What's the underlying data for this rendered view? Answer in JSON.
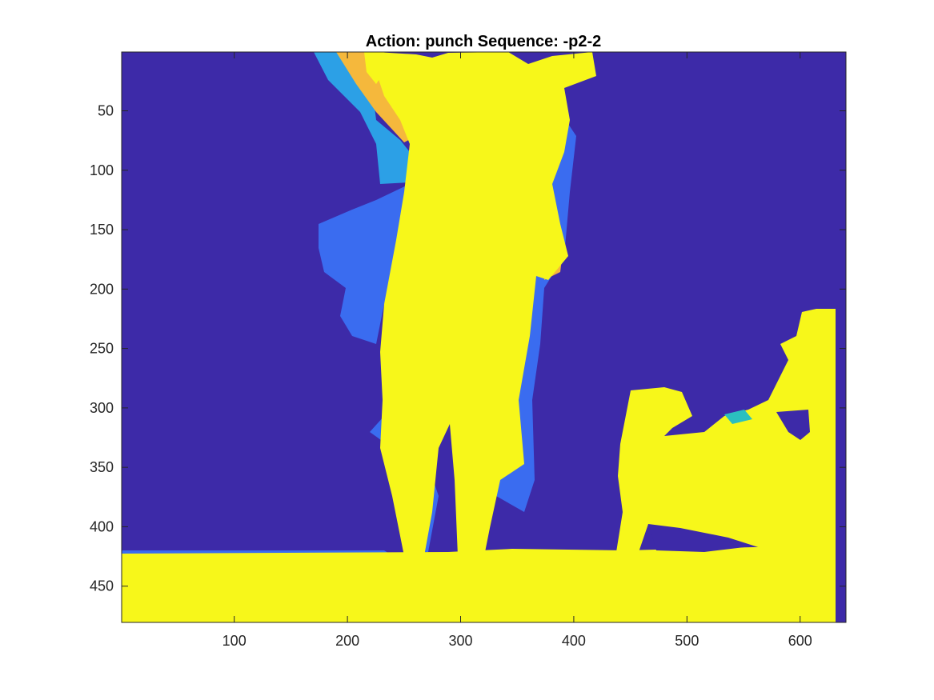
{
  "chart_data": {
    "type": "heatmap",
    "title": "Action: punch Sequence: -p2-2",
    "xlabel": "",
    "ylabel": "",
    "xlim": [
      0.5,
      640.5
    ],
    "ylim": [
      0.5,
      480.5
    ],
    "y_direction": "reverse",
    "x_ticks": [
      100,
      200,
      300,
      400,
      500,
      600
    ],
    "x_tick_labels": [
      "100",
      "200",
      "300",
      "400",
      "500",
      "600"
    ],
    "y_ticks": [
      50,
      100,
      150,
      200,
      250,
      300,
      350,
      400,
      450
    ],
    "y_tick_labels": [
      "50",
      "100",
      "150",
      "200",
      "250",
      "300",
      "350",
      "400",
      "450"
    ],
    "colormap": "parula",
    "colors": {
      "background": "#3d2aa8",
      "foreground": "#f7f71a",
      "blue": "#3a6cf0",
      "light_blue": "#2ca0e6",
      "cyan": "#2bbfbf",
      "orange": "#f5b83c"
    },
    "grid": false,
    "legend": "none",
    "image_size": [
      640,
      480
    ]
  }
}
